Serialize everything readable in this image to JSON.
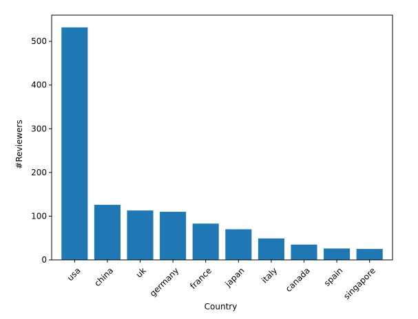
{
  "chart_data": {
    "type": "bar",
    "title": "",
    "xlabel": "Country",
    "ylabel": "#Reviewers",
    "categories": [
      "usa",
      "china",
      "uk",
      "germany",
      "france",
      "japan",
      "italy",
      "canada",
      "spain",
      "singapore"
    ],
    "values": [
      532,
      126,
      113,
      110,
      83,
      70,
      49,
      35,
      26,
      25
    ],
    "ylim": [
      0,
      560
    ],
    "yticks": [
      0,
      100,
      200,
      300,
      400,
      500
    ],
    "grid": false,
    "legend": "none",
    "bar_color": "#1f77b4",
    "x_tick_rotation_deg": 45
  }
}
